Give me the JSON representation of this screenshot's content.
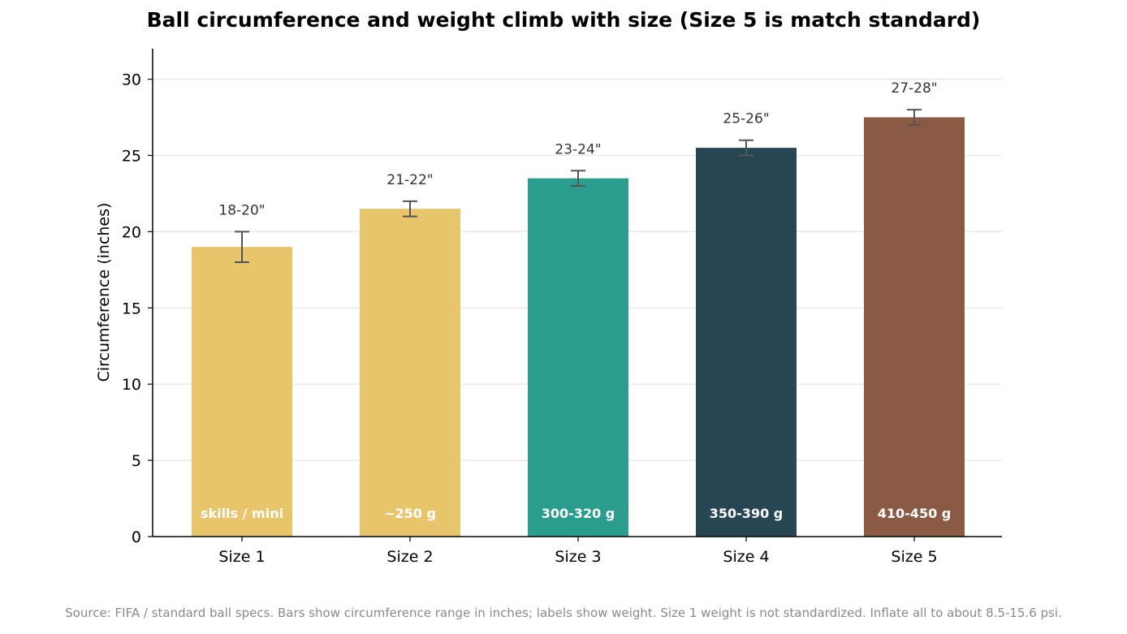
{
  "chart_data": {
    "type": "bar",
    "title": "Ball circumference and weight climb with size (Size 5 is match standard)",
    "ylabel": "Circumference (inches)",
    "xlabel": "",
    "ylim": [
      0,
      32
    ],
    "yticks": [
      0,
      5,
      10,
      15,
      20,
      25,
      30
    ],
    "grid": true,
    "categories": [
      "Size 1",
      "Size 2",
      "Size 3",
      "Size 4",
      "Size 5"
    ],
    "values": [
      19,
      21.5,
      23.5,
      25.5,
      27.5
    ],
    "ranges": [
      [
        18,
        20
      ],
      [
        21,
        22
      ],
      [
        23,
        24
      ],
      [
        25,
        26
      ],
      [
        27,
        28
      ]
    ],
    "range_labels": [
      "18-20\"",
      "21-22\"",
      "23-24\"",
      "25-26\"",
      "27-28\""
    ],
    "weight_labels": [
      "skills / mini",
      "~250 g",
      "300-320 g",
      "350-390 g",
      "410-450 g"
    ],
    "colors": [
      "#e8c46b",
      "#e8c46b",
      "#2a9d8f",
      "#264653",
      "#8a5a44"
    ],
    "source": "Source: FIFA / standard ball specs. Bars show circumference range in inches; labels show weight. Size 1 weight is not standardized. Inflate all to about 8.5-15.6 psi."
  }
}
